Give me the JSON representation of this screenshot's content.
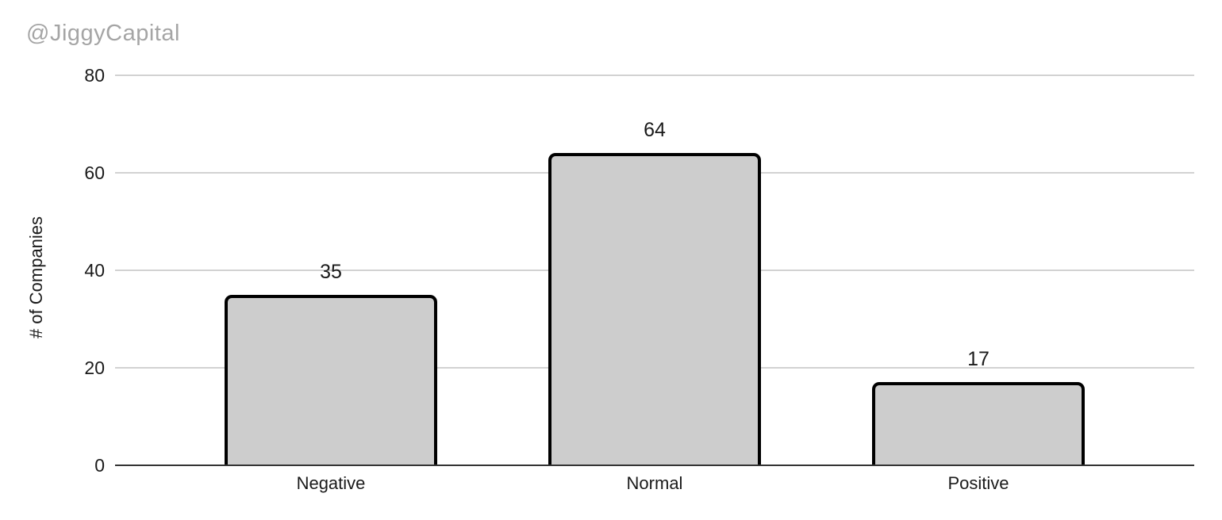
{
  "watermark": "@JiggyCapital",
  "chart_data": {
    "type": "bar",
    "categories": [
      "Negative",
      "Normal",
      "Positive"
    ],
    "values": [
      35,
      64,
      17
    ],
    "data_labels": [
      "35",
      "64",
      "17"
    ],
    "title": "",
    "xlabel": "",
    "ylabel": "# of Companies",
    "ylim": [
      0,
      80
    ],
    "yticks": [
      0,
      20,
      40,
      60,
      80
    ],
    "grid": "horizontal-only",
    "legend": "none",
    "colors": {
      "bar_fill": "#cdcdcd",
      "bar_border": "#000000",
      "gridline": "#d2d2d2",
      "axis_line": "#333333",
      "text": "#1a1a1a",
      "watermark": "#a5a5a5",
      "background": "#ffffff"
    }
  }
}
